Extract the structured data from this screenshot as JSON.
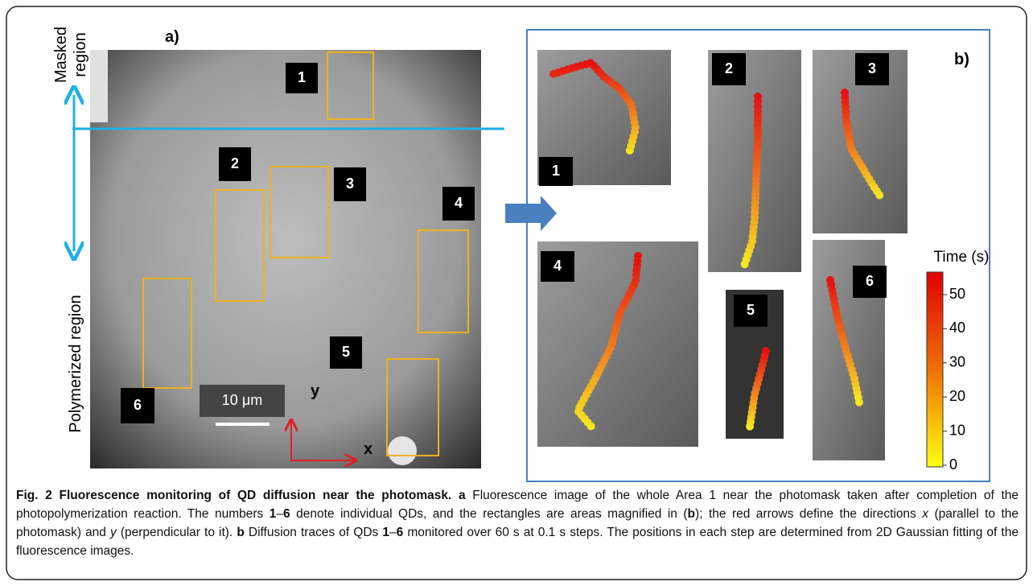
{
  "panel_a": {
    "label": "a)",
    "masked_region": [
      "Masked",
      "region"
    ],
    "polymerized_region": "Polymerized region",
    "qd_labels": [
      "1",
      "2",
      "3",
      "4",
      "5",
      "6"
    ],
    "scale_bar": "10 μm",
    "axis_x": "x",
    "axis_y": "y"
  },
  "panel_b": {
    "label": "b)",
    "qd_labels": [
      "1",
      "2",
      "3",
      "4",
      "5",
      "6"
    ],
    "colorbar": {
      "title": "Time (s)",
      "ticks": [
        0,
        10,
        20,
        30,
        40,
        50
      ]
    }
  },
  "caption": {
    "runs": [
      "Fig. 2 Fluorescence monitoring of QD diffusion near the photomask. a",
      " Fluorescence image of the whole Area 1 near the photomask taken after completion of the photopolymerization reaction. The numbers ",
      "1",
      "–",
      "6",
      " denote individual QDs, and the rectangles are areas magnified in (",
      "b",
      "); the red arrows define the directions ",
      "x",
      " (parallel to the photomask) and ",
      "y",
      " (perpendicular to it). ",
      "b",
      " Diffusion traces of QDs ",
      "1",
      "–",
      "6",
      " monitored over 60 s at 0.1 s steps. The positions in each step are determined from 2D Gaussian fitting of the fluorescence images."
    ]
  }
}
